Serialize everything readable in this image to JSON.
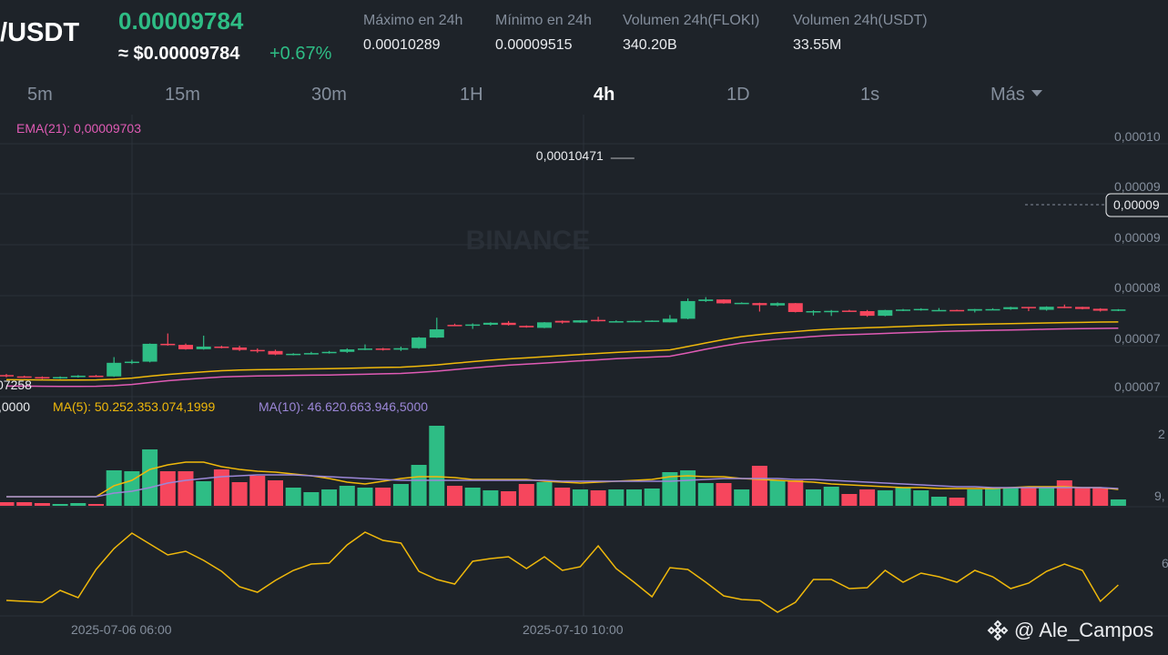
{
  "header": {
    "pair": "I/USDT",
    "price": "0.00009784",
    "approx_price": "≈ $0.00009784",
    "change": "+0.67%",
    "stats": [
      {
        "label": "Máximo en 24h",
        "value": "0.00010289"
      },
      {
        "label": "Mínimo en 24h",
        "value": "0.00009515"
      },
      {
        "label": "Volumen 24h(FLOKI)",
        "value": "340.20B"
      },
      {
        "label": "Volumen 24h(USDT)",
        "value": "33.55M"
      }
    ]
  },
  "timeframes": [
    "5m",
    "15m",
    "30m",
    "1H",
    "4h",
    "1D",
    "1s",
    "Más"
  ],
  "active_timeframe": "4h",
  "indicators": {
    "ema": "EMA(21): 0,00009703",
    "vol_prefix": ",0000",
    "ma5": "MA(5): 50.252.353.074,1999",
    "ma10": "MA(10): 46.620.663.946,5000"
  },
  "annotations": {
    "high_label": "0,00010471",
    "low_label": "07258",
    "current_price_tag": "0,00009"
  },
  "price_axis": [
    "0,00010",
    "0,00009",
    "0,00009",
    "0,00008",
    "0,00007",
    "0,00007"
  ],
  "volume_axis": [
    "2",
    "9,"
  ],
  "osc_axis": [
    "6"
  ],
  "time_axis": [
    "2025-07-06 06:00",
    "2025-07-10 10:00"
  ],
  "watermark": "BINANCE",
  "footer": {
    "user": "@ Ale_Campos"
  },
  "colors": {
    "up": "#2ebd85",
    "down": "#f6465d",
    "ema": "#e05bb5",
    "ma5": "#f0b90b",
    "ma10": "#9c87d8",
    "bg": "#1e2329",
    "grid": "#2b3139",
    "text_muted": "#848e9c"
  },
  "chart_data": {
    "type": "candlestick",
    "candles": [
      {
        "o": 7255,
        "c": 7240,
        "h": 7268,
        "l": 7230
      },
      {
        "o": 7240,
        "c": 7232,
        "h": 7248,
        "l": 7224
      },
      {
        "o": 7232,
        "c": 7218,
        "h": 7240,
        "l": 7210
      },
      {
        "o": 7218,
        "c": 7232,
        "h": 7240,
        "l": 7212
      },
      {
        "o": 7232,
        "c": 7248,
        "h": 7255,
        "l": 7226
      },
      {
        "o": 7248,
        "c": 7240,
        "h": 7256,
        "l": 7232
      },
      {
        "o": 7240,
        "c": 7395,
        "h": 7460,
        "l": 7235
      },
      {
        "o": 7395,
        "c": 7408,
        "h": 7430,
        "l": 7380
      },
      {
        "o": 7408,
        "c": 7612,
        "h": 7616,
        "l": 7400
      },
      {
        "o": 7612,
        "c": 7600,
        "h": 7730,
        "l": 7590
      },
      {
        "o": 7600,
        "c": 7550,
        "h": 7615,
        "l": 7545
      },
      {
        "o": 7550,
        "c": 7580,
        "h": 7705,
        "l": 7545
      },
      {
        "o": 7580,
        "c": 7570,
        "h": 7590,
        "l": 7560
      },
      {
        "o": 7570,
        "c": 7542,
        "h": 7590,
        "l": 7530
      },
      {
        "o": 7542,
        "c": 7530,
        "h": 7560,
        "l": 7510
      },
      {
        "o": 7530,
        "c": 7490,
        "h": 7545,
        "l": 7482
      },
      {
        "o": 7490,
        "c": 7498,
        "h": 7505,
        "l": 7480
      },
      {
        "o": 7498,
        "c": 7506,
        "h": 7520,
        "l": 7490
      },
      {
        "o": 7506,
        "c": 7520,
        "h": 7530,
        "l": 7500
      },
      {
        "o": 7520,
        "c": 7548,
        "h": 7560,
        "l": 7508
      },
      {
        "o": 7548,
        "c": 7558,
        "h": 7605,
        "l": 7540
      },
      {
        "o": 7558,
        "c": 7545,
        "h": 7565,
        "l": 7535
      },
      {
        "o": 7545,
        "c": 7562,
        "h": 7580,
        "l": 7530
      },
      {
        "o": 7562,
        "c": 7683,
        "h": 7690,
        "l": 7555
      },
      {
        "o": 7683,
        "c": 7777,
        "h": 7910,
        "l": 7680
      },
      {
        "o": 7828,
        "c": 7825,
        "h": 7842,
        "l": 7820
      },
      {
        "o": 7830,
        "c": 7833,
        "h": 7845,
        "l": 7782
      },
      {
        "o": 7830,
        "c": 7852,
        "h": 7858,
        "l": 7818
      },
      {
        "o": 7852,
        "c": 7827,
        "h": 7872,
        "l": 7820
      },
      {
        "o": 7817,
        "c": 7800,
        "h": 7822,
        "l": 7796
      },
      {
        "o": 7794,
        "c": 7857,
        "h": 7860,
        "l": 7790
      },
      {
        "o": 7874,
        "c": 7855,
        "h": 7878,
        "l": 7842
      },
      {
        "o": 7855,
        "c": 7880,
        "h": 7883,
        "l": 7852
      },
      {
        "o": 7885,
        "c": 7870,
        "h": 7920,
        "l": 7865
      },
      {
        "o": 7870,
        "c": 7870,
        "h": 7880,
        "l": 7860
      },
      {
        "o": 7868,
        "c": 7873,
        "h": 7878,
        "l": 7865
      },
      {
        "o": 7873,
        "c": 7877,
        "h": 7880,
        "l": 7868
      },
      {
        "o": 7857,
        "c": 7898,
        "h": 7940,
        "l": 7855
      },
      {
        "o": 7898,
        "c": 8100,
        "h": 8130,
        "l": 7892
      },
      {
        "o": 8100,
        "c": 8118,
        "h": 8145,
        "l": 8090
      },
      {
        "o": 8118,
        "c": 8074,
        "h": 8120,
        "l": 8070
      },
      {
        "o": 8074,
        "c": 8080,
        "h": 8085,
        "l": 8070
      },
      {
        "o": 8077,
        "c": 8053,
        "h": 8081,
        "l": 7980
      },
      {
        "o": 8050,
        "c": 8076,
        "h": 8085,
        "l": 8040
      },
      {
        "o": 8076,
        "c": 7975,
        "h": 8078,
        "l": 7970
      },
      {
        "o": 7975,
        "c": 7985,
        "h": 7995,
        "l": 7935
      },
      {
        "o": 7985,
        "c": 7988,
        "h": 7998,
        "l": 7930
      },
      {
        "o": 7991,
        "c": 7985,
        "h": 8000,
        "l": 7980
      },
      {
        "o": 7985,
        "c": 7932,
        "h": 7998,
        "l": 7920
      },
      {
        "o": 7932,
        "c": 7997,
        "h": 8000,
        "l": 7926
      },
      {
        "o": 7995,
        "c": 8003,
        "h": 8010,
        "l": 7985
      },
      {
        "o": 7998,
        "c": 8010,
        "h": 8018,
        "l": 7990
      },
      {
        "o": 7996,
        "c": 7998,
        "h": 8020,
        "l": 7985
      },
      {
        "o": 7998,
        "c": 7990,
        "h": 8002,
        "l": 7988
      },
      {
        "o": 7990,
        "c": 8008,
        "h": 8010,
        "l": 7970
      },
      {
        "o": 8000,
        "c": 8008,
        "h": 8018,
        "l": 7995
      },
      {
        "o": 8008,
        "c": 8030,
        "h": 8035,
        "l": 8000
      },
      {
        "o": 8033,
        "c": 8018,
        "h": 8033,
        "l": 7985
      },
      {
        "o": 8000,
        "c": 8035,
        "h": 8040,
        "l": 7990
      },
      {
        "o": 8035,
        "c": 8033,
        "h": 8060,
        "l": 8020
      },
      {
        "o": 8033,
        "c": 8010,
        "h": 8035,
        "l": 8005
      },
      {
        "o": 8012,
        "c": 7990,
        "h": 8018,
        "l": 7980
      },
      {
        "o": 7990,
        "c": 8004,
        "h": 8008,
        "l": 7985
      }
    ],
    "candle_x_start": 7,
    "candle_spacing": 19.7,
    "ema": [
      7240,
      7239,
      7237,
      7236,
      7236,
      7237,
      7245,
      7258,
      7280,
      7300,
      7316,
      7330,
      7343,
      7350,
      7355,
      7357,
      7361,
      7364,
      7366,
      7370,
      7375,
      7380,
      7383,
      7395,
      7409,
      7428,
      7446,
      7463,
      7478,
      7490,
      7502,
      7515,
      7528,
      7540,
      7552,
      7562,
      7570,
      7580,
      7619,
      7660,
      7698,
      7732,
      7755,
      7775,
      7790,
      7806,
      7818,
      7826,
      7833,
      7840,
      7848,
      7855,
      7862,
      7868,
      7872,
      7876,
      7880,
      7884,
      7888,
      7892,
      7895,
      7898,
      7900
    ],
    "ema_x_offset": 0,
    "ma5_vol": [
      10,
      10,
      10,
      10,
      10,
      10,
      22,
      28,
      40,
      45,
      48,
      48,
      43,
      40,
      38,
      37,
      35,
      33,
      30,
      26,
      24,
      27,
      30,
      32,
      32,
      31,
      29,
      29,
      29,
      29,
      27,
      26,
      25,
      26,
      27,
      28,
      29,
      32,
      33,
      32,
      32,
      30,
      29,
      28,
      27,
      26,
      24,
      23,
      22,
      21,
      20,
      20,
      19,
      19,
      19,
      19,
      20,
      21,
      21,
      21,
      20,
      20,
      18
    ],
    "ma10_vol": [
      10,
      10,
      10,
      10,
      10,
      10,
      14,
      16,
      20,
      25,
      28,
      30,
      32,
      33,
      34,
      34,
      34,
      33,
      32,
      31,
      30,
      29,
      28,
      28,
      28,
      28,
      28,
      28,
      28,
      28,
      28,
      27,
      27,
      27,
      27,
      27,
      27,
      27,
      28,
      29,
      30,
      30,
      30,
      30,
      29,
      29,
      28,
      27,
      26,
      25,
      24,
      23,
      22,
      21,
      21,
      20,
      20,
      20,
      20,
      20,
      20,
      20,
      19
    ],
    "volume": [
      4,
      4,
      3,
      2,
      3,
      2,
      39,
      38,
      62,
      38,
      38,
      27,
      40,
      26,
      33,
      28,
      20,
      15,
      18,
      22,
      20,
      20,
      24,
      45,
      88,
      22,
      20,
      17,
      16,
      24,
      26,
      20,
      18,
      17,
      18,
      18,
      19,
      37,
      39,
      25,
      25,
      18,
      44,
      28,
      28,
      18,
      21,
      13,
      18,
      17,
      20,
      17,
      10,
      9,
      18,
      20,
      20,
      20,
      20,
      28,
      20,
      20,
      7
    ],
    "oscillator": [
      660,
      661,
      662,
      649,
      657,
      626,
      603,
      586,
      598,
      610,
      606,
      616,
      628,
      645,
      651,
      638,
      627,
      620,
      619,
      599,
      585,
      594,
      597,
      628,
      637,
      642,
      617,
      614,
      612,
      625,
      612,
      627,
      623,
      600,
      625,
      640,
      656,
      624,
      626,
      640,
      655,
      659,
      660,
      673,
      662,
      637,
      637,
      647,
      646,
      627,
      640,
      630,
      634,
      640,
      627,
      634,
      647,
      641,
      628,
      620,
      627,
      661,
      643
    ],
    "ranges": {
      "price": [
        7200,
        10500
      ],
      "volume": [
        0,
        100
      ]
    }
  }
}
